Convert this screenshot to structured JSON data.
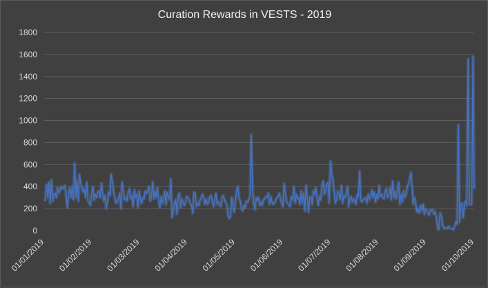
{
  "chart_data": {
    "type": "line",
    "title": "Curation Rewards in VESTS - 2019",
    "xlabel": "",
    "ylabel": "",
    "ylim": [
      0,
      1800
    ],
    "yticks": [
      "0",
      "200",
      "400",
      "600",
      "800",
      "1000",
      "1200",
      "1400",
      "1600",
      "1800"
    ],
    "xticks": [
      "01/01/2019",
      "01/02/2019",
      "01/03/2019",
      "01/04/2019",
      "01/05/2019",
      "01/06/2019",
      "01/07/2019",
      "01/08/2019",
      "01/09/2019",
      "01/10/2019"
    ],
    "grid": true,
    "legend": "none",
    "colors": {
      "line": "#4472c4",
      "glow": "#5b8bd9",
      "background": "#404040",
      "grid": "#5e5e5e",
      "text": "#d9d9d9"
    },
    "series": [
      {
        "values": [
          270,
          280,
          420,
          300,
          440,
          250,
          460,
          270,
          330,
          340,
          300,
          390,
          340,
          370,
          400,
          380,
          390,
          410,
          330,
          210,
          340,
          390,
          300,
          400,
          280,
          610,
          300,
          460,
          270,
          510,
          430,
          400,
          350,
          380,
          300,
          440,
          270,
          250,
          230,
          330,
          400,
          280,
          330,
          300,
          350,
          360,
          300,
          430,
          330,
          270,
          320,
          200,
          270,
          350,
          320,
          510,
          440,
          350,
          300,
          250,
          260,
          290,
          340,
          200,
          440,
          350,
          280,
          300,
          270,
          350,
          380,
          290,
          320,
          220,
          370,
          300,
          330,
          210,
          360,
          280,
          250,
          300,
          290,
          360,
          340,
          360,
          400,
          270,
          300,
          440,
          290,
          360,
          300,
          390,
          270,
          210,
          310,
          250,
          280,
          360,
          240,
          350,
          300,
          280,
          470,
          120,
          180,
          250,
          280,
          150,
          320,
          340,
          210,
          290,
          260,
          230,
          250,
          310,
          300,
          280,
          240,
          230,
          160,
          350,
          340,
          220,
          250,
          230,
          280,
          300,
          330,
          290,
          240,
          290,
          240,
          260,
          310,
          320,
          270,
          220,
          280,
          340,
          240,
          260,
          230,
          220,
          300,
          320,
          280,
          260,
          230,
          140,
          110,
          130,
          300,
          220,
          170,
          280,
          360,
          400,
          290,
          270,
          200,
          180,
          230,
          210,
          270,
          260,
          280,
          320,
          870,
          380,
          250,
          190,
          300,
          270,
          300,
          230,
          260,
          230,
          280,
          290,
          310,
          300,
          340,
          240,
          310,
          260,
          240,
          250,
          270,
          300,
          310,
          340,
          290,
          250,
          220,
          430,
          330,
          260,
          250,
          230,
          220,
          310,
          280,
          400,
          250,
          330,
          290,
          300,
          240,
          360,
          250,
          340,
          180,
          410,
          300,
          170,
          300,
          310,
          240,
          360,
          330,
          390,
          300,
          230,
          310,
          280,
          400,
          450,
          330,
          360,
          420,
          440,
          250,
          630,
          520,
          460,
          360,
          250,
          280,
          360,
          330,
          280,
          410,
          250,
          320,
          300,
          340,
          400,
          220,
          290,
          310,
          260,
          290,
          270,
          240,
          330,
          310,
          540,
          270,
          260,
          280,
          290,
          300,
          250,
          330,
          280,
          310,
          370,
          300,
          350,
          260,
          330,
          290,
          410,
          310,
          330,
          300,
          290,
          360,
          380,
          300,
          320,
          390,
          280,
          450,
          300,
          360,
          290,
          350,
          440,
          240,
          330,
          260,
          360,
          300,
          330,
          390,
          430,
          460,
          530,
          400,
          240,
          300,
          250,
          170,
          200,
          160,
          230,
          180,
          240,
          150,
          200,
          180,
          160,
          140,
          190,
          180,
          190,
          150,
          170,
          120,
          20,
          10,
          160,
          130,
          60,
          20,
          30,
          20,
          20,
          40,
          20,
          20,
          20,
          10,
          40,
          80,
          60,
          960,
          80,
          240,
          250,
          120,
          240,
          270,
          230,
          1560,
          240,
          240,
          240,
          1580,
          380
        ]
      }
    ]
  }
}
